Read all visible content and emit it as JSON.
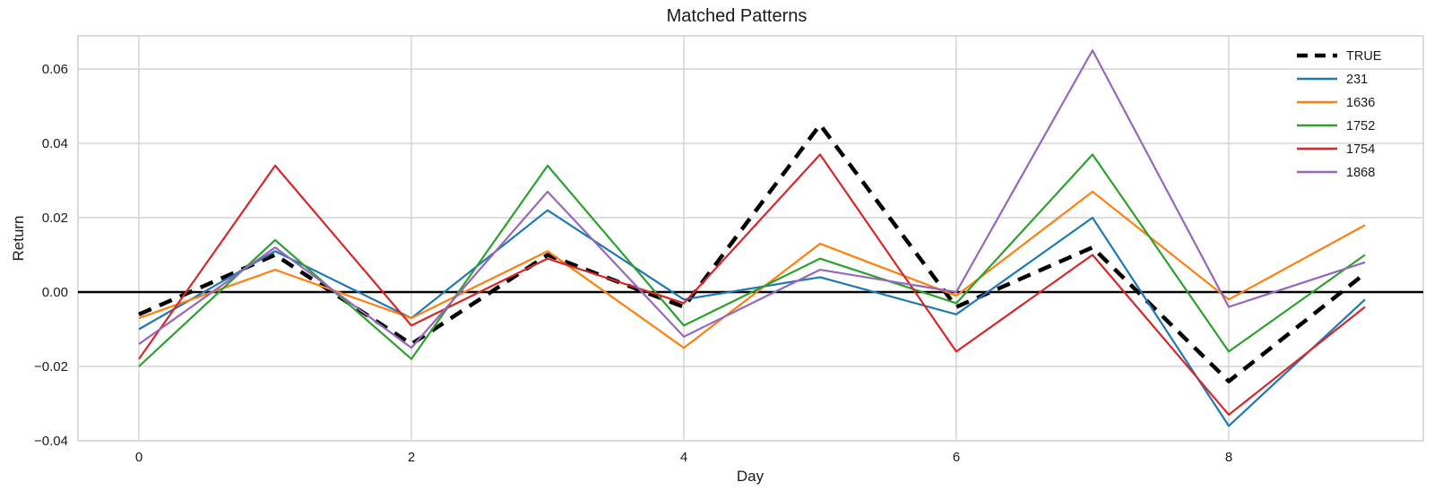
{
  "chart_data": {
    "type": "line",
    "title": "Matched Patterns",
    "xlabel": "Day",
    "ylabel": "Return",
    "grid": true,
    "legend_position": "upper right",
    "zero_line": true,
    "grid_color": "#cccccc",
    "spine_color": "#c8c8c8",
    "text_color": "#1a1a1a",
    "x": [
      0,
      1,
      2,
      3,
      4,
      5,
      6,
      7,
      8,
      9
    ],
    "x_ticks": {
      "values": [
        0,
        2,
        4,
        6,
        8
      ],
      "labels": [
        "0",
        "2",
        "4",
        "6",
        "8"
      ]
    },
    "y_ticks": {
      "values": [
        0.06,
        0.04,
        0.02,
        0.0,
        -0.02,
        -0.04
      ],
      "labels": [
        "0.06",
        "0.04",
        "0.02",
        "0.00",
        "−0.02",
        "−0.04"
      ]
    },
    "xlim": [
      -0.45,
      9.43
    ],
    "ylim": [
      -0.04,
      0.069
    ],
    "series": [
      {
        "name": "TRUE",
        "color": "#000000",
        "dashed": true,
        "values": [
          -0.006,
          0.01,
          -0.014,
          0.01,
          -0.004,
          0.045,
          -0.004,
          0.012,
          -0.024,
          0.005
        ]
      },
      {
        "name": "231",
        "color": "#1f77b4",
        "dashed": false,
        "values": [
          -0.01,
          0.011,
          -0.007,
          0.022,
          -0.002,
          0.004,
          -0.006,
          0.02,
          -0.036,
          -0.002
        ]
      },
      {
        "name": "1636",
        "color": "#ff7f0e",
        "dashed": false,
        "values": [
          -0.007,
          0.006,
          -0.007,
          0.011,
          -0.015,
          0.013,
          -0.001,
          0.027,
          -0.002,
          0.018
        ]
      },
      {
        "name": "1752",
        "color": "#2ca02c",
        "dashed": false,
        "values": [
          -0.02,
          0.014,
          -0.018,
          0.034,
          -0.009,
          0.009,
          -0.003,
          0.037,
          -0.016,
          0.01
        ]
      },
      {
        "name": "1754",
        "color": "#d62728",
        "dashed": false,
        "values": [
          -0.018,
          0.034,
          -0.009,
          0.009,
          -0.003,
          0.037,
          -0.016,
          0.01,
          -0.033,
          -0.004
        ]
      },
      {
        "name": "1868",
        "color": "#9467bd",
        "dashed": false,
        "values": [
          -0.014,
          0.012,
          -0.015,
          0.027,
          -0.012,
          0.006,
          0.0,
          0.065,
          -0.004,
          0.008
        ]
      }
    ]
  }
}
